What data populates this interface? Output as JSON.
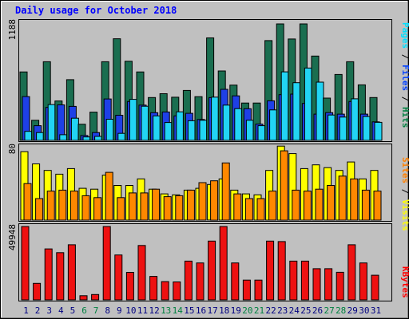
{
  "chart_data": [
    {
      "type": "bar",
      "title": "Daily usage for October 2018",
      "ymax_label": "1188",
      "legend": [
        {
          "text": "Hits",
          "color": "#008040"
        },
        {
          "text": "Files",
          "color": "#0040ff"
        },
        {
          "text": "Pages",
          "color": "#00e0ff"
        }
      ],
      "ylim": [
        0,
        1188
      ],
      "series": [
        {
          "name": "Hits",
          "color": "#1a6e50",
          "values": [
            698,
            205,
            802,
            402,
            619,
            164,
            288,
            802,
            1037,
            807,
            698,
            437,
            476,
            440,
            509,
            446,
            1046,
            708,
            564,
            381,
            381,
            1018,
            1188,
            1034,
            1188,
            860,
            431,
            672,
            802,
            566,
            437
          ]
        },
        {
          "name": "Files",
          "color": "#1e40e6",
          "values": [
            447,
            150,
            336,
            362,
            347,
            50,
            80,
            422,
            256,
            396,
            360,
            282,
            290,
            250,
            276,
            213,
            436,
            521,
            454,
            323,
            166,
            404,
            466,
            472,
            377,
            268,
            283,
            268,
            396,
            268,
            189
          ]
        },
        {
          "name": "Pages",
          "color": "#22d4f4",
          "values": [
            92,
            80,
            365,
            58,
            226,
            35,
            41,
            216,
            72,
            418,
            348,
            250,
            182,
            291,
            200,
            205,
            441,
            360,
            324,
            205,
            150,
            311,
            699,
            588,
            738,
            594,
            259,
            238,
            424,
            243,
            184
          ]
        }
      ]
    },
    {
      "type": "bar",
      "ymax_label": "80",
      "legend": [
        {
          "text": "Visits",
          "color": "#ffff00"
        },
        {
          "text": "Sites",
          "color": "#ff8000"
        }
      ],
      "ylim": [
        0,
        80
      ],
      "series": [
        {
          "name": "Visits",
          "color": "#ffff00",
          "values": [
            73,
            60,
            53,
            49,
            55,
            34,
            33,
            48,
            37,
            37,
            44,
            33,
            28,
            27,
            32,
            34,
            38,
            44,
            32,
            28,
            27,
            53,
            79,
            71,
            55,
            59,
            56,
            53,
            62,
            44,
            53
          ]
        },
        {
          "name": "Sites",
          "color": "#ff8800",
          "values": [
            39,
            23,
            31,
            32,
            31,
            26,
            24,
            51,
            24,
            29,
            29,
            33,
            25,
            26,
            32,
            40,
            42,
            61,
            28,
            23,
            23,
            31,
            74,
            32,
            31,
            33,
            37,
            47,
            44,
            32,
            31
          ]
        }
      ]
    },
    {
      "type": "bar",
      "ymax_label": "49948",
      "legend": [
        {
          "text": "KBytes",
          "color": "#ff0000"
        }
      ],
      "ylim": [
        0,
        49948
      ],
      "series": [
        {
          "name": "KBytes",
          "color": "#ee1111",
          "values": [
            49948,
            11238,
            34689,
            32160,
            37500,
            2808,
            3636,
            49948,
            30565,
            18737,
            37000,
            15964,
            12440,
            12200,
            26400,
            25120,
            40000,
            49948,
            25120,
            13440,
            13440,
            40000,
            39700,
            26400,
            26400,
            21240,
            21240,
            18808,
            37500,
            25120,
            16800
          ]
        }
      ]
    }
  ],
  "x_axis": {
    "labels": [
      "1",
      "2",
      "3",
      "4",
      "5",
      "6",
      "7",
      "8",
      "9",
      "10",
      "11",
      "12",
      "13",
      "14",
      "15",
      "16",
      "17",
      "18",
      "19",
      "20",
      "21",
      "22",
      "23",
      "24",
      "25",
      "26",
      "27",
      "28",
      "29",
      "30",
      "31"
    ],
    "weekend_days": [
      6,
      7,
      13,
      14,
      20,
      21,
      27,
      28
    ],
    "weekday_color": "#000080",
    "weekend_color": "#008040"
  }
}
